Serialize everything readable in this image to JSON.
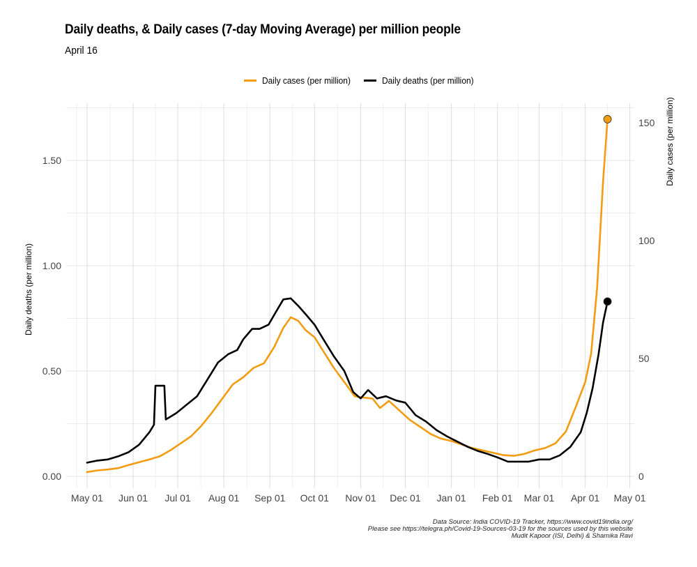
{
  "chart_data": {
    "type": "line",
    "title": "Daily deaths, & Daily cases (7-day Moving Average) per million people",
    "subtitle": "April 16",
    "xlabel": "",
    "ylabel_left": "Daily deaths (per million)",
    "ylabel_right": "Daily cases (per million)",
    "legend_position": "top",
    "grid": true,
    "xlim": [
      "2020-04-17",
      "2021-05-04"
    ],
    "ylim_left": [
      0,
      1.78
    ],
    "ylim_right": [
      0,
      158
    ],
    "x_ticks": [
      {
        "date": "2020-05-01",
        "label": "May 01"
      },
      {
        "date": "2020-06-01",
        "label": "Jun 01"
      },
      {
        "date": "2020-07-01",
        "label": "Jul 01"
      },
      {
        "date": "2020-08-01",
        "label": "Aug 01"
      },
      {
        "date": "2020-09-01",
        "label": "Sep 01"
      },
      {
        "date": "2020-10-01",
        "label": "Oct 01"
      },
      {
        "date": "2020-11-01",
        "label": "Nov 01"
      },
      {
        "date": "2020-12-01",
        "label": "Dec 01"
      },
      {
        "date": "2021-01-01",
        "label": "Jan 01"
      },
      {
        "date": "2021-02-01",
        "label": "Feb 01"
      },
      {
        "date": "2021-03-01",
        "label": "Mar 01"
      },
      {
        "date": "2021-04-01",
        "label": "Apr 01"
      },
      {
        "date": "2021-05-01",
        "label": "May 01"
      }
    ],
    "y_ticks_left": [
      {
        "value": 0,
        "label": "0.00"
      },
      {
        "value": 0.5,
        "label": "0.50"
      },
      {
        "value": 1.0,
        "label": "1.00"
      },
      {
        "value": 1.5,
        "label": "1.50"
      }
    ],
    "y_ticks_right": [
      {
        "value": 0,
        "label": "0"
      },
      {
        "value": 50,
        "label": "50"
      },
      {
        "value": 100,
        "label": "100"
      },
      {
        "value": 150,
        "label": "150"
      }
    ],
    "series": [
      {
        "name": "Daily cases (per million)",
        "axis": "right",
        "color": "#F39C12",
        "endpoint_marker": true,
        "x": [
          "2020-05-01",
          "2020-05-08",
          "2020-05-15",
          "2020-05-22",
          "2020-05-29",
          "2020-06-05",
          "2020-06-12",
          "2020-06-19",
          "2020-06-26",
          "2020-07-03",
          "2020-07-10",
          "2020-07-17",
          "2020-07-24",
          "2020-07-31",
          "2020-08-07",
          "2020-08-14",
          "2020-08-21",
          "2020-08-28",
          "2020-09-04",
          "2020-09-10",
          "2020-09-15",
          "2020-09-20",
          "2020-09-25",
          "2020-10-01",
          "2020-10-07",
          "2020-10-14",
          "2020-10-21",
          "2020-10-28",
          "2020-11-02",
          "2020-11-09",
          "2020-11-14",
          "2020-11-20",
          "2020-11-27",
          "2020-12-04",
          "2020-12-11",
          "2020-12-18",
          "2020-12-25",
          "2021-01-01",
          "2021-01-08",
          "2021-01-15",
          "2021-01-22",
          "2021-01-29",
          "2021-02-05",
          "2021-02-12",
          "2021-02-19",
          "2021-02-26",
          "2021-03-05",
          "2021-03-12",
          "2021-03-19",
          "2021-03-26",
          "2021-04-01",
          "2021-04-05",
          "2021-04-09",
          "2021-04-13",
          "2021-04-16"
        ],
        "values": [
          1.8,
          2.5,
          2.9,
          3.5,
          4.8,
          6,
          7.2,
          8.5,
          11,
          14,
          17,
          21.5,
          27,
          33,
          39,
          42,
          46,
          48,
          55,
          63,
          67.5,
          66,
          62,
          59,
          53,
          46,
          40,
          34,
          33.5,
          33,
          29,
          32,
          28,
          24,
          21,
          18,
          16,
          15,
          13.5,
          12,
          11,
          10,
          9,
          8.7,
          9.5,
          11,
          12,
          14,
          19,
          30,
          40,
          52,
          80,
          125,
          151.5
        ]
      },
      {
        "name": "Daily deaths (per million)",
        "axis": "left",
        "color": "#000000",
        "endpoint_marker": true,
        "x": [
          "2020-05-01",
          "2020-05-08",
          "2020-05-15",
          "2020-05-22",
          "2020-05-29",
          "2020-06-05",
          "2020-06-12",
          "2020-06-15",
          "2020-06-16",
          "2020-06-22",
          "2020-06-23",
          "2020-06-30",
          "2020-07-07",
          "2020-07-14",
          "2020-07-21",
          "2020-07-28",
          "2020-08-04",
          "2020-08-10",
          "2020-08-14",
          "2020-08-20",
          "2020-08-25",
          "2020-08-31",
          "2020-09-05",
          "2020-09-10",
          "2020-09-15",
          "2020-09-20",
          "2020-09-25",
          "2020-10-01",
          "2020-10-07",
          "2020-10-14",
          "2020-10-21",
          "2020-10-27",
          "2020-11-01",
          "2020-11-06",
          "2020-11-12",
          "2020-11-18",
          "2020-11-25",
          "2020-12-01",
          "2020-12-08",
          "2020-12-15",
          "2020-12-22",
          "2020-12-29",
          "2021-01-05",
          "2021-01-12",
          "2021-01-19",
          "2021-01-26",
          "2021-02-01",
          "2021-02-08",
          "2021-02-15",
          "2021-02-22",
          "2021-03-01",
          "2021-03-08",
          "2021-03-15",
          "2021-03-22",
          "2021-03-29",
          "2021-04-02",
          "2021-04-06",
          "2021-04-10",
          "2021-04-13",
          "2021-04-16"
        ],
        "values": [
          0.065,
          0.075,
          0.08,
          0.095,
          0.115,
          0.15,
          0.21,
          0.245,
          0.43,
          0.43,
          0.27,
          0.3,
          0.34,
          0.38,
          0.46,
          0.54,
          0.58,
          0.6,
          0.65,
          0.7,
          0.7,
          0.72,
          0.78,
          0.84,
          0.845,
          0.81,
          0.77,
          0.72,
          0.65,
          0.57,
          0.5,
          0.4,
          0.37,
          0.41,
          0.37,
          0.38,
          0.36,
          0.35,
          0.29,
          0.26,
          0.22,
          0.19,
          0.165,
          0.14,
          0.12,
          0.105,
          0.09,
          0.07,
          0.07,
          0.07,
          0.08,
          0.08,
          0.1,
          0.14,
          0.21,
          0.3,
          0.42,
          0.58,
          0.73,
          0.83
        ]
      }
    ],
    "caption": [
      "Data Source: India COVID-19 Tracker, https://www.covid19india.org/",
      "Please see https://telegra.ph/Covid-19-Sources-03-19 for the sources used by this website",
      "Mudit Kapoor (ISI, Delhi) & Shamika Ravi"
    ]
  }
}
